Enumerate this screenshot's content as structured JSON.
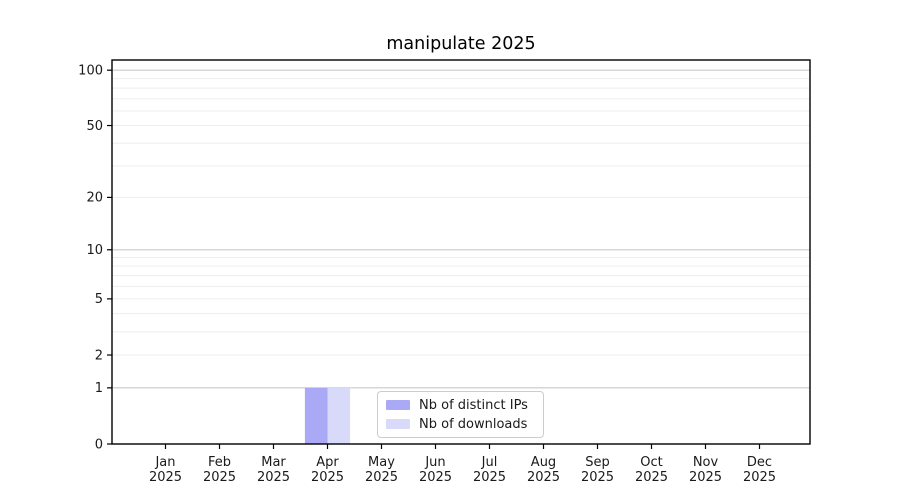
{
  "chart_data": {
    "type": "bar",
    "title": "manipulate 2025",
    "year_label": "2025",
    "categories": [
      "Jan",
      "Feb",
      "Mar",
      "Apr",
      "May",
      "Jun",
      "Jul",
      "Aug",
      "Sep",
      "Oct",
      "Nov",
      "Dec"
    ],
    "series": [
      {
        "name": "Nb of distinct IPs",
        "color": "#a9a9f5",
        "values": [
          0,
          0,
          0,
          1,
          0,
          0,
          0,
          0,
          0,
          0,
          0,
          0
        ]
      },
      {
        "name": "Nb of downloads",
        "color": "#d9d9fa",
        "values": [
          0,
          0,
          0,
          1,
          0,
          0,
          0,
          0,
          0,
          0,
          0,
          0
        ]
      }
    ],
    "y_scale": "log1p",
    "y_ticks": [
      0,
      1,
      2,
      5,
      10,
      20,
      50,
      100
    ],
    "y_tick_labels": [
      "0",
      "1",
      "2",
      "5",
      "10",
      "20",
      "50",
      "100"
    ],
    "y_major_gridlines": [
      1,
      10,
      100
    ],
    "y_minor_gridlines": [
      2,
      3,
      4,
      5,
      6,
      7,
      8,
      9,
      20,
      30,
      40,
      50,
      60,
      70,
      80,
      90
    ],
    "ylim": [
      0,
      113
    ],
    "xlabel": "",
    "ylabel": "",
    "grid": "horizontal only",
    "legend_position": "lower center, inside plot",
    "colors": {
      "background": "#ffffff",
      "spine": "#000000",
      "major_grid": "#c9c9c9",
      "minor_grid": "#ededed",
      "text": "#1a1a1a",
      "legend_border": "#cccccc"
    }
  }
}
